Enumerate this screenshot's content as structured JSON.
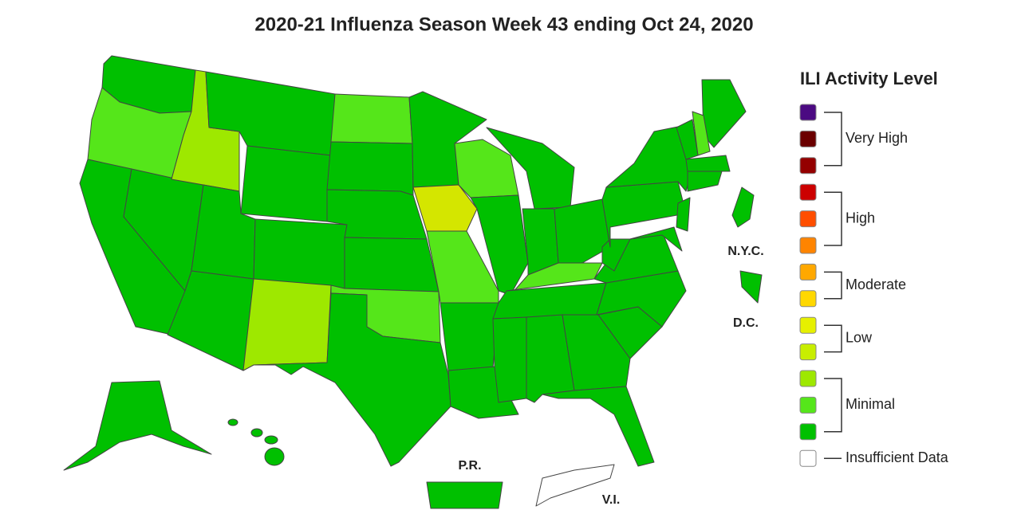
{
  "title": "2020-21 Influenza Season Week 43 ending Oct 24, 2020",
  "legend": {
    "title": "ILI Activity Level",
    "groups": [
      {
        "label": "Very High",
        "colors": [
          "#4b0a82",
          "#6b0000",
          "#940000"
        ]
      },
      {
        "label": "High",
        "colors": [
          "#cc0000",
          "#ff4e00",
          "#ff8400"
        ]
      },
      {
        "label": "Moderate",
        "colors": [
          "#ffa800",
          "#ffd800"
        ]
      },
      {
        "label": "Low",
        "colors": [
          "#e6f000",
          "#c8ee00"
        ]
      },
      {
        "label": "Minimal",
        "colors": [
          "#9ee800",
          "#55e61a",
          "#00c000"
        ]
      }
    ],
    "insufficient": {
      "label": "Insufficient Data",
      "color": "#ffffff"
    }
  },
  "map": {
    "labels": [
      "N.Y.C.",
      "D.C.",
      "P.R.",
      "V.I."
    ]
  }
}
